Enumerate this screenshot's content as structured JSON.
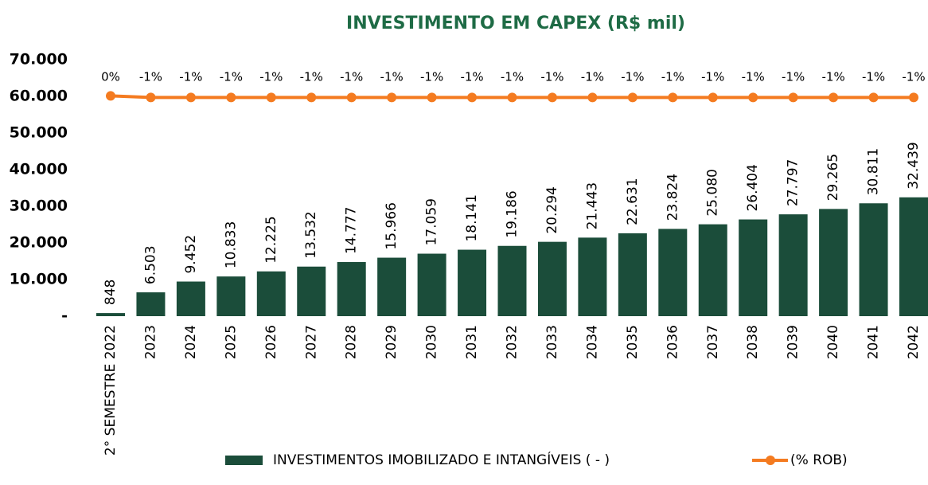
{
  "chart_data": {
    "type": "bar",
    "title": "INVESTIMENTO EM CAPEX  (R$ mil)",
    "categories": [
      "2° SEMESTRE 2022",
      "2023",
      "2024",
      "2025",
      "2026",
      "2027",
      "2028",
      "2029",
      "2030",
      "2031",
      "2032",
      "2033",
      "2034",
      "2035",
      "2036",
      "2037",
      "2038",
      "2039",
      "2040",
      "2041",
      "2042"
    ],
    "series": [
      {
        "name": "INVESTIMENTOS IMOBILIZADO E INTANGÍVEIS ( - )",
        "type": "bar",
        "color": "#1b4d3a",
        "values": [
          848,
          6503,
          9452,
          10833,
          12225,
          13532,
          14777,
          15966,
          17059,
          18141,
          19186,
          20294,
          21443,
          22631,
          23824,
          25080,
          26404,
          27797,
          29265,
          30811,
          32439
        ],
        "value_labels": [
          "848",
          "6.503",
          "9.452",
          "10.833",
          "12.225",
          "13.532",
          "14.777",
          "15.966",
          "17.059",
          "18.141",
          "19.186",
          "20.294",
          "21.443",
          "22.631",
          "23.824",
          "25.080",
          "26.404",
          "27.797",
          "29.265",
          "30.811",
          "32.439"
        ]
      },
      {
        "name": "(% ROB)",
        "type": "line",
        "axis": "y2",
        "color": "#f47b20",
        "values": [
          0,
          -1,
          -1,
          -1,
          -1,
          -1,
          -1,
          -1,
          -1,
          -1,
          -1,
          -1,
          -1,
          -1,
          -1,
          -1,
          -1,
          -1,
          -1,
          -1,
          -1
        ],
        "value_labels": [
          "0%",
          "-1%",
          "-1%",
          "-1%",
          "-1%",
          "-1%",
          "-1%",
          "-1%",
          "-1%",
          "-1%",
          "-1%",
          "-1%",
          "-1%",
          "-1%",
          "-1%",
          "-1%",
          "-1%",
          "-1%",
          "-1%",
          "-1%",
          "-1%"
        ]
      }
    ],
    "ylim": [
      0,
      70000
    ],
    "yticks": [
      {
        "value": 0,
        "label": "-"
      },
      {
        "value": 10000,
        "label": "10.000"
      },
      {
        "value": 20000,
        "label": "20.000"
      },
      {
        "value": 30000,
        "label": "30.000"
      },
      {
        "value": 40000,
        "label": "40.000"
      },
      {
        "value": 50000,
        "label": "50.000"
      },
      {
        "value": 60000,
        "label": "60.000"
      },
      {
        "value": 70000,
        "label": "70.000"
      }
    ],
    "y2lim": [
      -140,
      23
    ],
    "legend": "bottom"
  }
}
